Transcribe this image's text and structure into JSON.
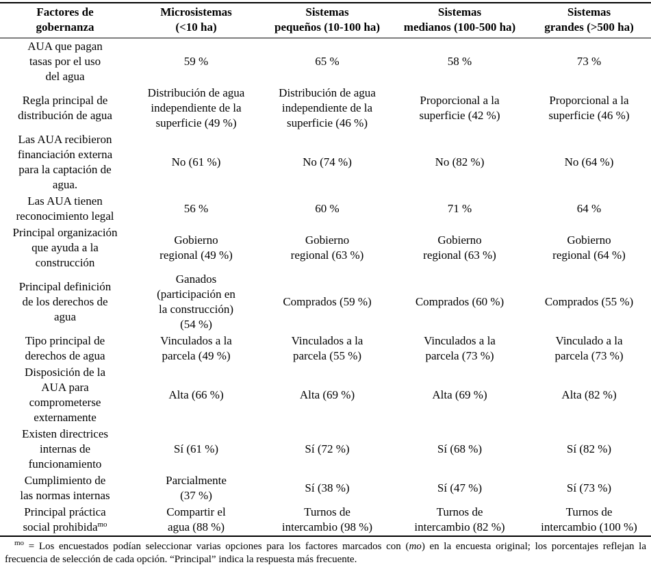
{
  "table": {
    "columns": [
      "Factores de\ngobernanza",
      "Microsistemas\n(<10 ha)",
      "Sistemas\npequeños (10-100 ha)",
      "Sistemas\nmedianos (100-500 ha)",
      "Sistemas\ngrandes (>500 ha)"
    ],
    "rows": [
      {
        "factor": "AUA que pagan\ntasas por el uso\ndel agua",
        "values": [
          "59 %",
          "65 %",
          "58 %",
          "73 %"
        ]
      },
      {
        "factor": "Regla principal de\ndistribución de agua",
        "values": [
          "Distribución de agua\nindependiente de la\nsuperficie (49 %)",
          "Distribución de agua\nindependiente de la\nsuperficie (46 %)",
          "Proporcional a la\nsuperficie (42 %)",
          "Proporcional a la\nsuperficie (46 %)"
        ]
      },
      {
        "factor": "Las AUA recibieron\nfinanciación externa\npara la captación de\nagua.",
        "values": [
          "No (61 %)",
          "No (74 %)",
          "No (82 %)",
          "No (64 %)"
        ]
      },
      {
        "factor": "Las AUA tienen\nreconocimiento legal",
        "values": [
          "56 %",
          "60 %",
          "71 %",
          "64 %"
        ]
      },
      {
        "factor": "Principal organización\nque ayuda a la\nconstrucción",
        "values": [
          "Gobierno\nregional (49 %)",
          "Gobierno\nregional (63 %)",
          "Gobierno\nregional (63 %)",
          "Gobierno\nregional (64 %)"
        ]
      },
      {
        "factor": "Principal definición\nde los derechos de\nagua",
        "values": [
          "Ganados\n(participación en\nla construcción)\n(54 %)",
          "Comprados (59 %)",
          "Comprados (60 %)",
          "Comprados (55 %)"
        ]
      },
      {
        "factor": "Tipo principal de\nderechos de agua",
        "values": [
          "Vinculados a la\nparcela (49 %)",
          "Vinculados a la\nparcela (55 %)",
          "Vinculados a la\nparcela (73 %)",
          "Vinculado a la\nparcela (73 %)"
        ]
      },
      {
        "factor": "Disposición de la\nAUA para\ncomprometerse\nexternamente",
        "values": [
          "Alta (66 %)",
          "Alta (69 %)",
          "Alta (69 %)",
          "Alta (82 %)"
        ]
      },
      {
        "factor": "Existen directrices\ninternas de\nfuncionamiento",
        "values": [
          "Sí (61 %)",
          "Sí (72 %)",
          "Sí (68 %)",
          "Sí (82 %)"
        ]
      },
      {
        "factor": "Cumplimiento de\nlas normas internas",
        "values": [
          "Parcialmente\n(37 %)",
          "Sí (38 %)",
          "Sí (47 %)",
          "Sí (73 %)"
        ]
      },
      {
        "factor": "Principal práctica\nsocial prohibida",
        "factor_sup": "mo",
        "values": [
          "Compartir el\nagua (88 %)",
          "Turnos de\nintercambio (98 %)",
          "Turnos de\nintercambio (82 %)",
          "Turnos de\nintercambio (100 %)"
        ]
      }
    ]
  },
  "footnote": {
    "marker": "mo",
    "text_pre": " = Los encuestados podían seleccionar varias opciones para los factores marcados con (",
    "term_italic": "mo",
    "text_post": ") en la encuesta original; los porcentajes reflejan la frecuencia de selección de cada opción. “Principal” indica la respuesta más frecuente."
  }
}
